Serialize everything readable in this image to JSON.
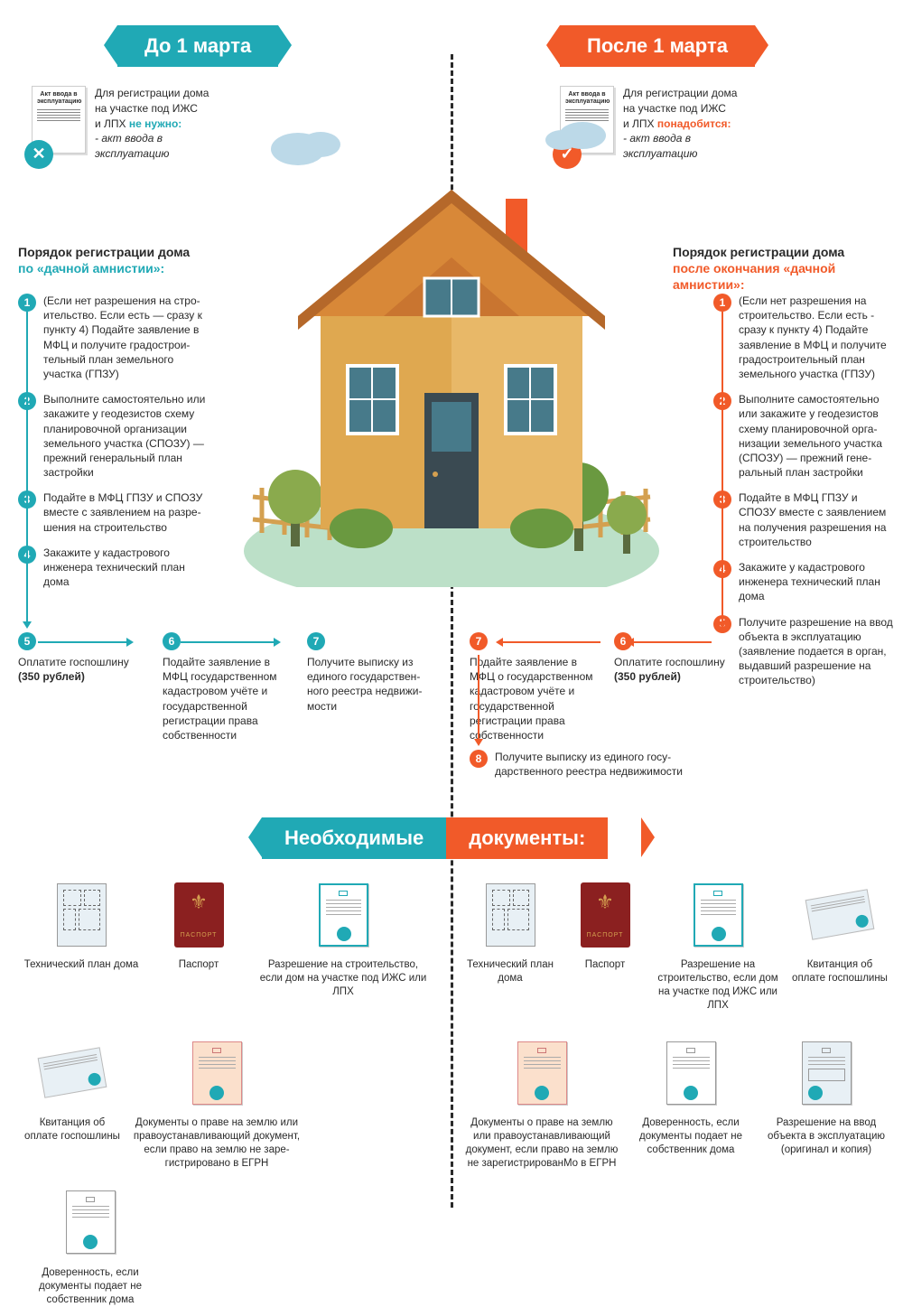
{
  "colors": {
    "teal": "#20a9b5",
    "orange": "#f15a29",
    "text": "#2a2a2a",
    "bg": "#ffffff"
  },
  "leftRibbon": "До 1 марта",
  "rightRibbon": "После 1 марта",
  "leftDoc": {
    "actTitle": "Акт ввода в эксплуатацию",
    "badge": "✕",
    "line1": "Для регистрации дома",
    "line2": "на участке под ИЖС",
    "line3pre": "и ЛПХ ",
    "line3hl": "не нужно:",
    "line4": "- акт ввода в",
    "line5": "эксплуатацию"
  },
  "rightDoc": {
    "actTitle": "Акт ввода в эксплуатацию",
    "badge": "✓",
    "line1": "Для регистрации дома",
    "line2": "на участке под ИЖС",
    "line3pre": "и ЛПХ ",
    "line3hl": "понадобится:",
    "line4": "- акт ввода в",
    "line5": "эксплуатацию"
  },
  "leftSection": {
    "title": "Порядок регистрации дома",
    "sub": "по «дачной амнистии»:"
  },
  "rightSection": {
    "title": "Порядок регистрации дома",
    "sub": "после окончания «дачной амнистии»:"
  },
  "leftSteps": [
    "(Если нет разрешения на стро­ительство. Если есть — сразу к пункту 4) Подайте заявление в МФЦ и получите градострои­тельный план земельного участка (ГПЗУ)",
    "Выполните самостоятельно или закажите у геодезистов схему планировочной орга­низации земельного участка (СПОЗУ) — прежний генераль­ный план застройки",
    "Подайте в МФЦ ГПЗУ и СПОЗУ вместе с заявлением на разре­шения на строительство",
    "Закажите у кадастрового инженера технический план дома"
  ],
  "leftRow": [
    {
      "n": "5",
      "t": "Оплатите госпошлину (350 рублей)"
    },
    {
      "n": "6",
      "t": "Подайте заявление в МФЦ государственном кадастровом учёте и госу­дарственной регистрации права собственности"
    },
    {
      "n": "7",
      "t": "Получите выписку из единого государствен­ного реестра недвижи­мости"
    }
  ],
  "rightSteps": [
    "(Если нет разрешения на строительство. Если есть - сразу к пункту 4) Подайте заявление в МФЦ и получи­те градостроительный план земельного участка (ГПЗУ)",
    "Выполните самостоятельно или закажите у геодезистов схему планировочной орга­низации земельного участка (СПОЗУ) — прежний гене­ральный план застройки",
    "Подайте в МФЦ ГПЗУ и СПОЗУ вместе с заявлением на получения разрешения на строительство",
    "Закажите у кадастрового инженера технический план дома",
    "Получите разрешение на ввод объекта в эксплуатацию (заявление подается в орган, выдавший разрешение на строительство)"
  ],
  "rightRow": [
    {
      "n": "7",
      "t": "Подайте заявление в МФЦ о государ­ственном кадастро­вом учёте и государ­ственной регистрации права собственности"
    },
    {
      "n": "6",
      "t": "Оплатите госпошлину (350 рублей)"
    }
  ],
  "rightStep8": {
    "n": "8",
    "t": "Получите выписку из единого госу­дарственного реестра недвижимости"
  },
  "docsRibbon": {
    "left": "Необходимые",
    "right": " документы:"
  },
  "leftDocsRow1": [
    "Технический план дома",
    "Паспорт",
    "Разрешение на строительство, если дом на участке под ИЖС или ЛПХ"
  ],
  "leftDocsRow2": [
    "Квитанция об оплате госпошлины",
    "Документы о праве на землю или правоустанав­ливающий документ, если право на землю не заре­гистрировано в ЕГРН",
    "Доверенность, если документы подает не собственник дома"
  ],
  "rightDocsRow1": [
    "Технический план дома",
    "Паспорт",
    "Разрешение на строительство, если дом на участке под ИЖС или ЛПХ",
    "Квитанция об оплате госпошлины"
  ],
  "rightDocsRow2": [
    "Документы о праве на землю или правоустанав­ливающий документ, если право на землю не заре­гистрированМо в ЕГРН",
    "Доверенность, если документы подает не собственник дома",
    "Разрешение на ввод объекта в эксплуатацию (оригинал и копия)"
  ],
  "passportLabel": "ПАСПОРТ"
}
